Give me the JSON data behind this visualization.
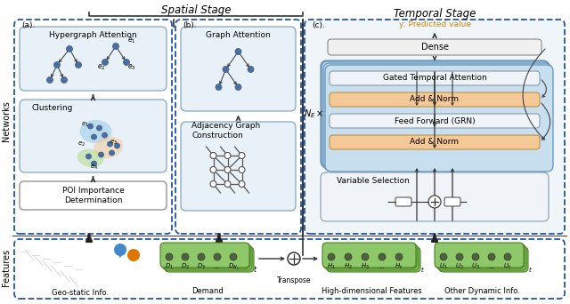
{
  "title_spatial": "Spatial Stage",
  "title_temporal": "Temporal Stage",
  "predicted_label": "y: Predicted value",
  "label_a": "(a).",
  "label_b": "(b).",
  "label_c": "(c).",
  "networks_label": "Networks",
  "features_label": "Features",
  "box_a1_title": "Hypergraph Attention",
  "box_a2_title": "Clustering",
  "box_a3_title": "POI Importance\nDetermination",
  "box_b1_title": "Graph Attention",
  "box_b2_title": "Adjacency Graph\nConstruction",
  "box_c_dense": "Dense",
  "box_c_add1": "Add & Norm",
  "box_c_ff": "Feed Forward (GRN)",
  "box_c_add2": "Add & Norm",
  "box_c_gta": "Gated Temporal Attention",
  "box_c_vs": "Variable Selection",
  "ne_label": "$N_E \\times$",
  "geo_label": "Geo-static Info.",
  "demand_label": "Demand",
  "hd_label": "High-dimensional Features",
  "od_label": "Other Dynamic Info.",
  "transpose_label": "Transpose",
  "bg_color": "#ffffff",
  "dashed_color": "#2255aa",
  "box_light_blue": "#e8f0f8",
  "box_mid_blue": "#ccdff0",
  "box_deep_blue": "#b8d0e8",
  "orange_fill": "#f5c897",
  "green_fill": "#8ec66a",
  "green_dark": "#5a8a30",
  "green_light": "#b8dda0",
  "node_color": "#4a6e9e",
  "node_dark": "#3a5a88"
}
